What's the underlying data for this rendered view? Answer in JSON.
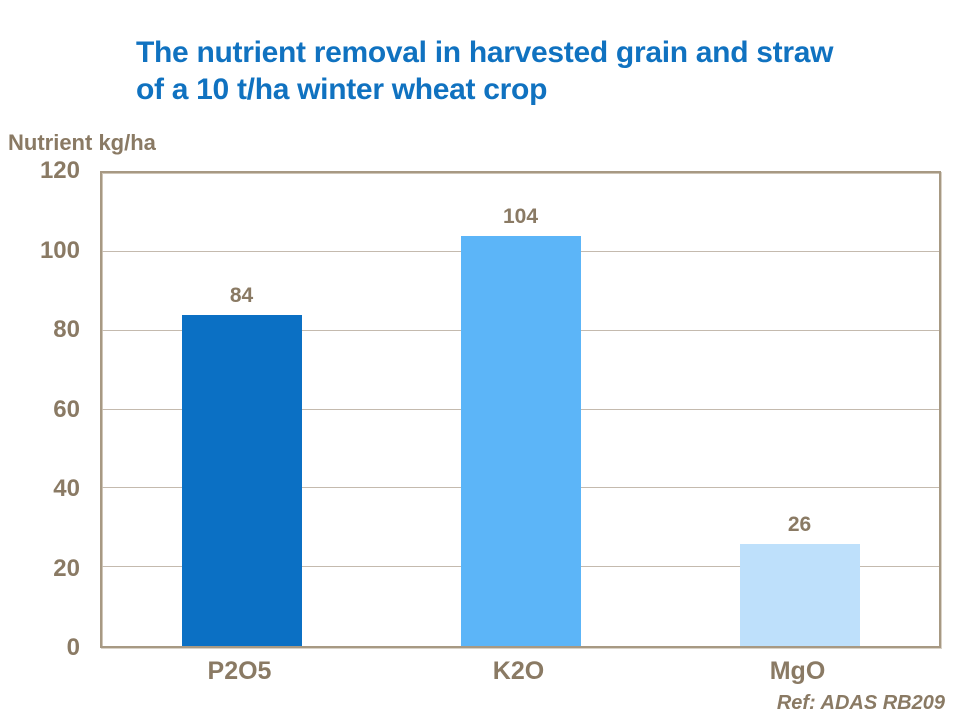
{
  "title": {
    "line1": "The nutrient removal in harvested grain and straw",
    "line2": "of a 10 t/ha winter wheat crop"
  },
  "axis_label": "Nutrient kg/ha",
  "footer": {
    "ref": "Ref: ADAS RB209"
  },
  "colors": {
    "title": "#1072C0",
    "text": "#8A7A64",
    "gridline": "#C4BAAE",
    "frame": "#A79983",
    "bars": [
      "#0B70C4",
      "#5CB5F8",
      "#BEE0FB"
    ]
  },
  "chart_data": {
    "type": "bar",
    "title": "The nutrient removal in harvested grain and straw of a 10 t/ha winter wheat crop",
    "categories": [
      "P2O5",
      "K2O",
      "MgO"
    ],
    "values": [
      84,
      104,
      26
    ],
    "data_labels": [
      "84",
      "104",
      "26"
    ],
    "xlabel": "",
    "ylabel": "Nutrient kg/ha",
    "ylim": [
      0,
      120
    ],
    "yticks": [
      0,
      20,
      40,
      60,
      80,
      100,
      120
    ],
    "grid": true,
    "legend": false,
    "annotation": "Ref: ADAS RB209"
  }
}
